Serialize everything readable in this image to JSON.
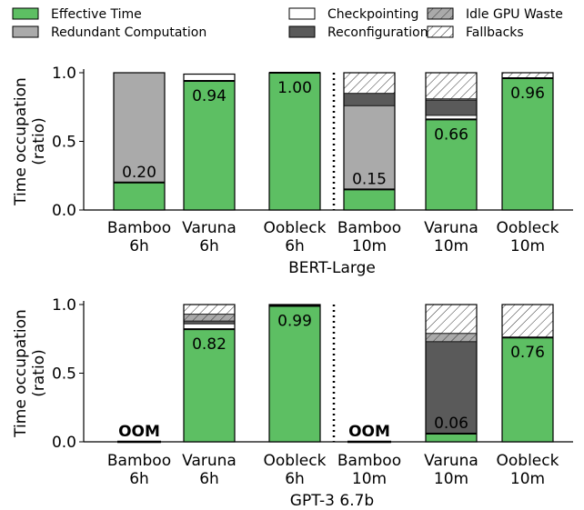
{
  "legend": [
    {
      "key": "effective",
      "label": "Effective Time",
      "color": "#5dbf63",
      "hatch": false
    },
    {
      "key": "redundant",
      "label": "Redundant Computation",
      "color": "#aaaaaa",
      "hatch": false
    },
    {
      "key": "checkpoint",
      "label": "Checkpointing",
      "color": "#ffffff",
      "hatch": false
    },
    {
      "key": "reconfig",
      "label": "Reconfiguration",
      "color": "#5a5a5a",
      "hatch": false
    },
    {
      "key": "idle",
      "label": "Idle GPU Waste",
      "color": "#aaaaaa",
      "hatch": true
    },
    {
      "key": "fallback",
      "label": "Fallbacks",
      "color": "#ffffff",
      "hatch": true
    }
  ],
  "chart_data": [
    {
      "type": "bar",
      "stacked": true,
      "xlabel": "BERT-Large",
      "ylabel": "Time occupation\n(ratio)",
      "ylim": [
        0,
        1.0
      ],
      "yticks": [
        "0.0",
        "0.5",
        "1.0"
      ],
      "categories": [
        "Bamboo\n6h",
        "Varuna\n6h",
        "Oobleck\n6h",
        "Bamboo\n10m",
        "Varuna\n10m",
        "Oobleck\n10m"
      ],
      "series": [
        {
          "name": "Effective Time",
          "key": "effective",
          "values": [
            0.2,
            0.94,
            1.0,
            0.15,
            0.66,
            0.96
          ]
        },
        {
          "name": "Redundant Computation",
          "key": "redundant",
          "values": [
            0.8,
            0,
            0,
            0.61,
            0,
            0
          ]
        },
        {
          "name": "Checkpointing",
          "key": "checkpoint",
          "values": [
            0,
            0.05,
            0,
            0,
            0.03,
            0
          ]
        },
        {
          "name": "Reconfiguration",
          "key": "reconfig",
          "values": [
            0,
            0,
            0,
            0.09,
            0.11,
            0
          ]
        },
        {
          "name": "Idle GPU Waste",
          "key": "idle",
          "values": [
            0,
            0,
            0,
            0,
            0.01,
            0
          ]
        },
        {
          "name": "Fallbacks",
          "key": "fallback",
          "values": [
            0,
            0,
            0,
            0.15,
            0.19,
            0.04
          ]
        }
      ],
      "data_labels": [
        "0.20",
        "0.94",
        "1.00",
        "0.15",
        "0.66",
        "0.96"
      ],
      "oom": [
        false,
        false,
        false,
        false,
        false,
        false
      ]
    },
    {
      "type": "bar",
      "stacked": true,
      "xlabel": "GPT-3 6.7b",
      "ylabel": "Time occupation\n(ratio)",
      "ylim": [
        0,
        1.0
      ],
      "yticks": [
        "0.0",
        "0.5",
        "1.0"
      ],
      "categories": [
        "Bamboo\n6h",
        "Varuna\n6h",
        "Oobleck\n6h",
        "Bamboo\n10m",
        "Varuna\n10m",
        "Oobleck\n10m"
      ],
      "series": [
        {
          "name": "Effective Time",
          "key": "effective",
          "values": [
            0,
            0.82,
            0.99,
            0,
            0.06,
            0.76
          ]
        },
        {
          "name": "Redundant Computation",
          "key": "redundant",
          "values": [
            0,
            0,
            0,
            0,
            0,
            0
          ]
        },
        {
          "name": "Checkpointing",
          "key": "checkpoint",
          "values": [
            0,
            0.04,
            0.01,
            0,
            0,
            0
          ]
        },
        {
          "name": "Reconfiguration",
          "key": "reconfig",
          "values": [
            0,
            0.02,
            0,
            0,
            0.67,
            0
          ]
        },
        {
          "name": "Idle GPU Waste",
          "key": "idle",
          "values": [
            0,
            0.05,
            0,
            0,
            0.06,
            0
          ]
        },
        {
          "name": "Fallbacks",
          "key": "fallback",
          "values": [
            0,
            0.07,
            0,
            0,
            0.21,
            0.24
          ]
        }
      ],
      "data_labels": [
        "OOM",
        "0.82",
        "0.99",
        "OOM",
        "0.06",
        "0.76"
      ],
      "oom": [
        true,
        false,
        false,
        true,
        false,
        false
      ]
    }
  ]
}
